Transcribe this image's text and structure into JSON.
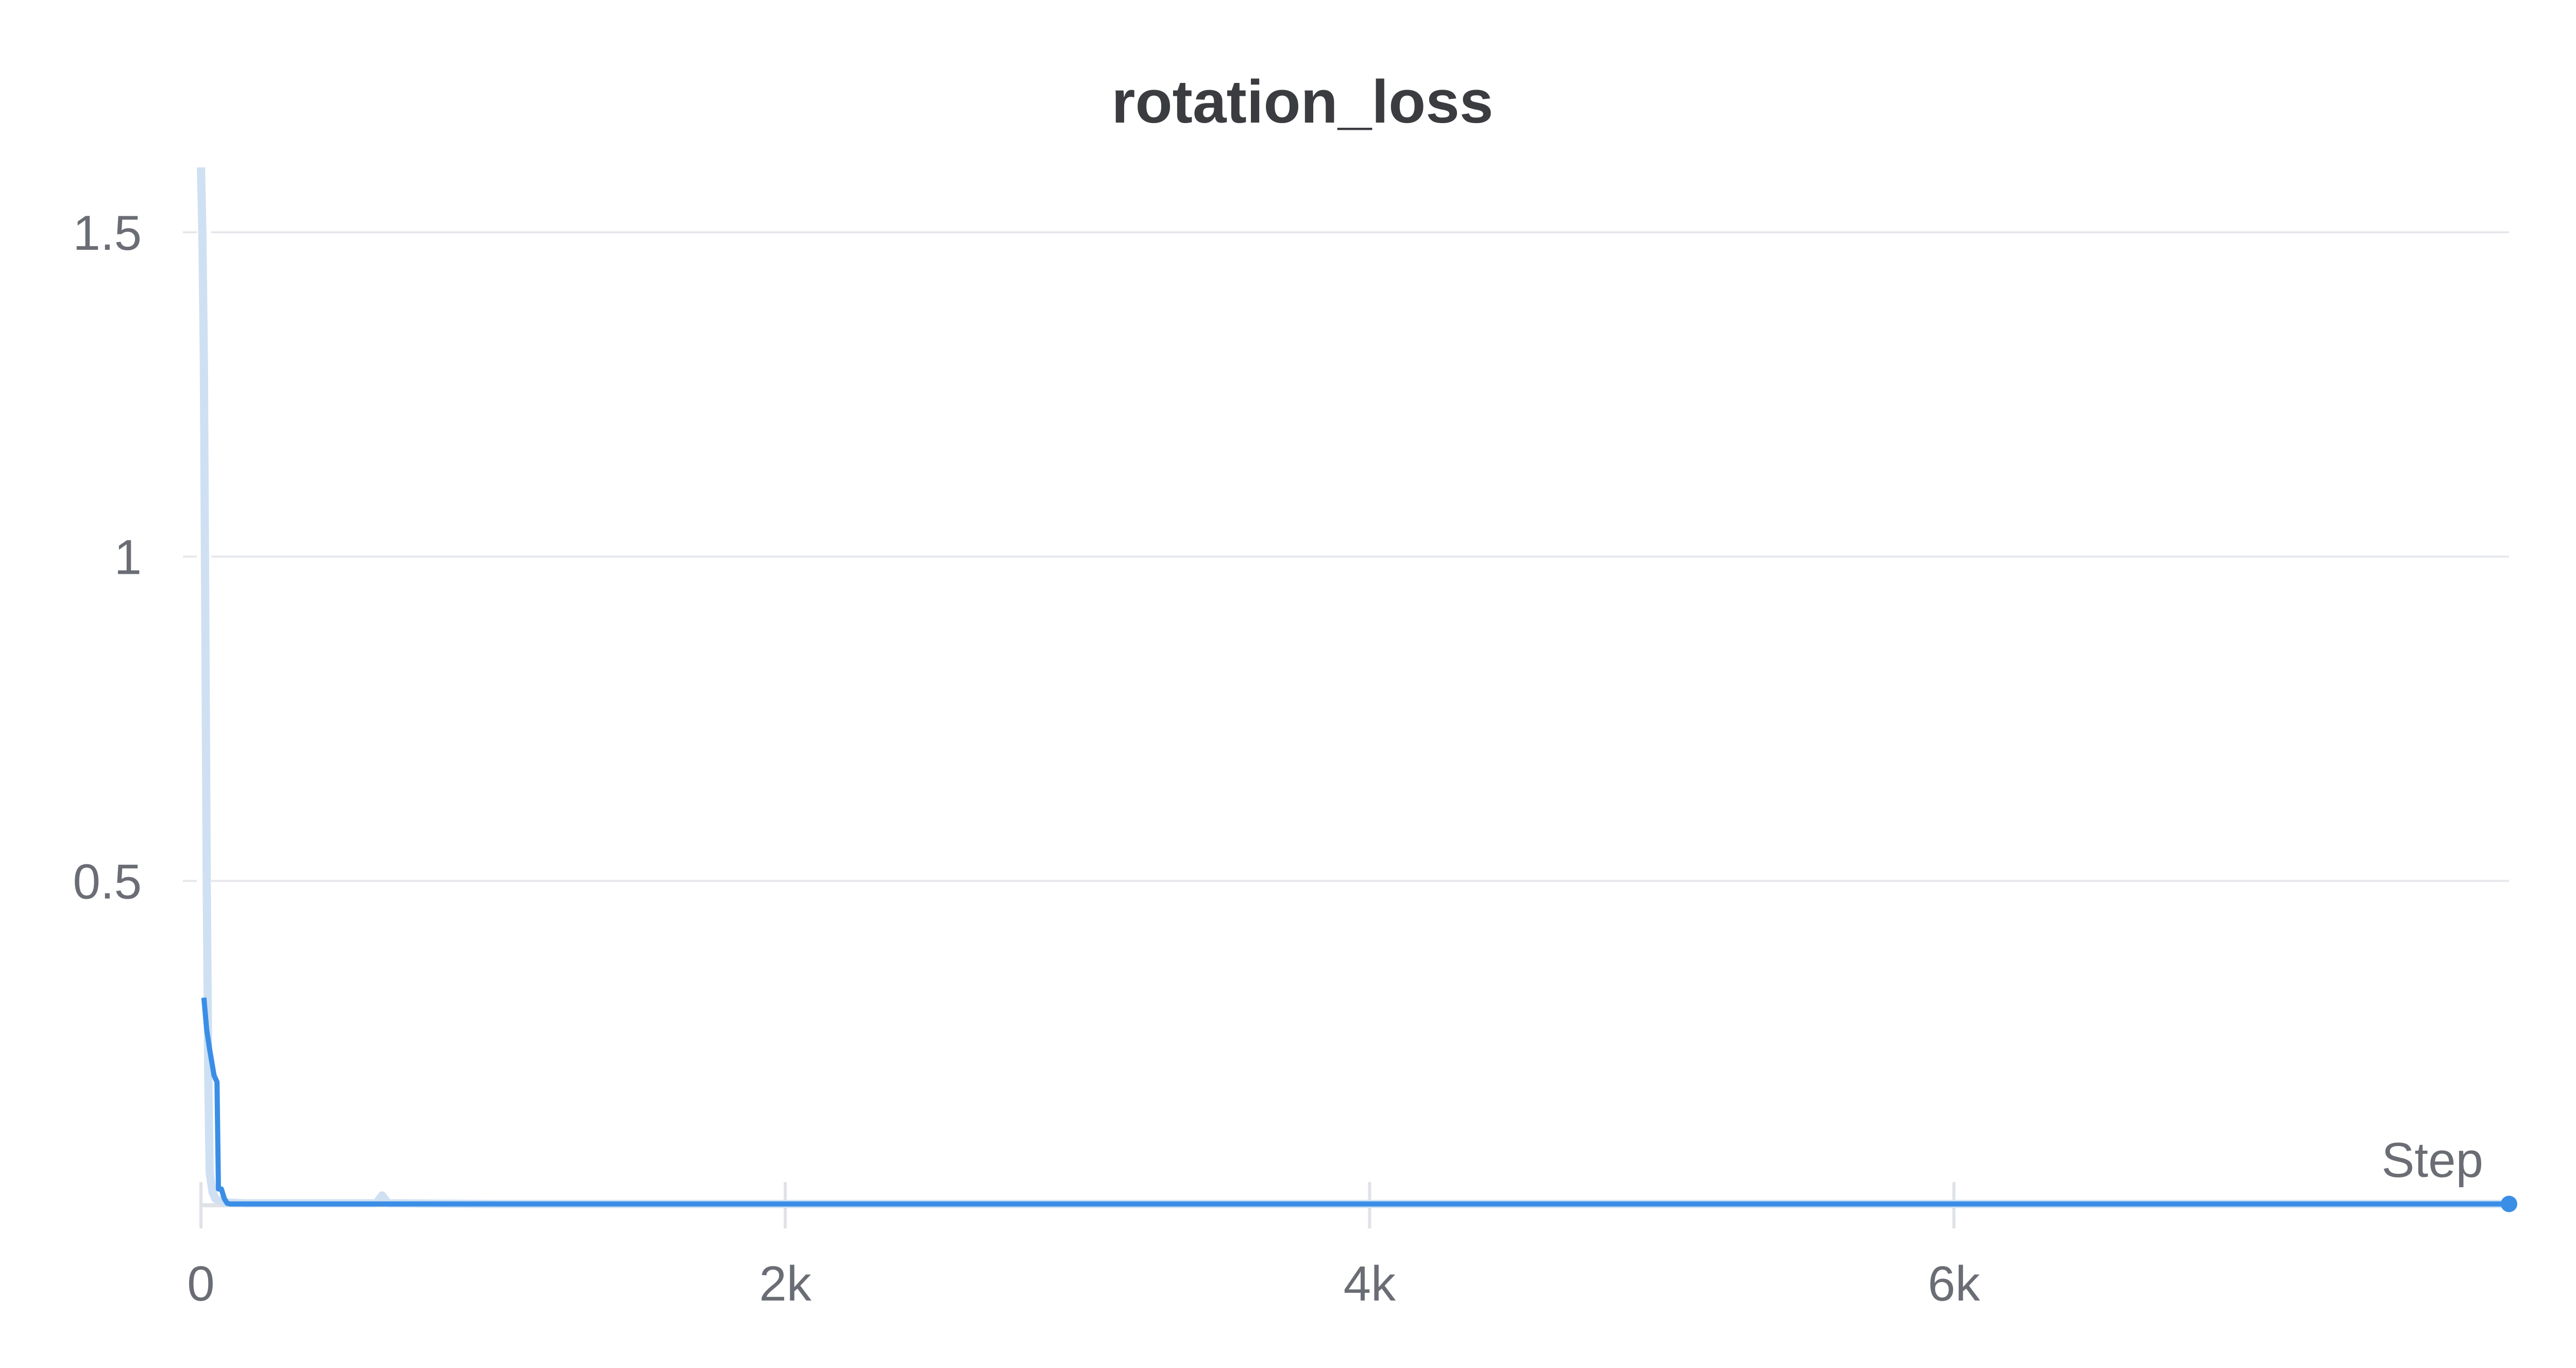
{
  "chart_data": {
    "type": "line",
    "title": "rotation_loss",
    "xlabel": "Step",
    "ylabel": "",
    "xlim": [
      0,
      7900
    ],
    "ylim": [
      0,
      1.6
    ],
    "x_ticks": [
      0,
      2000,
      4000,
      6000
    ],
    "x_tick_labels": [
      "0",
      "2k",
      "4k",
      "6k"
    ],
    "y_ticks": [
      0.5,
      1,
      1.5
    ],
    "y_tick_labels": [
      "0.5",
      "1",
      "1.5"
    ],
    "grid": true,
    "legend": "none",
    "colors": {
      "smoothed": "#3a8ee6",
      "raw": "#cfe0f3",
      "grid": "#e6e8ec",
      "tick_label": "#6b6d75",
      "title": "#3b3c40"
    },
    "series": [
      {
        "role": "raw",
        "x": [
          0,
          5,
          10,
          15,
          20,
          25,
          30,
          40,
          50,
          60,
          70,
          80,
          100,
          150,
          300,
          600,
          620,
          640,
          1000,
          2000,
          4000,
          6000,
          7900
        ],
        "y": [
          1.6,
          1.5,
          1.3,
          0.9,
          0.5,
          0.2,
          0.05,
          0.02,
          0.01,
          0.008,
          0.006,
          0.005,
          0.004,
          0.003,
          0.003,
          0.003,
          0.015,
          0.003,
          0.002,
          0.002,
          0.002,
          0.002,
          0.002
        ]
      },
      {
        "role": "smoothed",
        "x": [
          10,
          20,
          30,
          45,
          55,
          60,
          70,
          80,
          90,
          100,
          150,
          1000,
          3000,
          6000,
          7900
        ],
        "y": [
          0.32,
          0.27,
          0.24,
          0.2,
          0.19,
          0.025,
          0.025,
          0.01,
          0.003,
          0.002,
          0.002,
          0.002,
          0.002,
          0.002,
          0.002
        ]
      }
    ]
  }
}
